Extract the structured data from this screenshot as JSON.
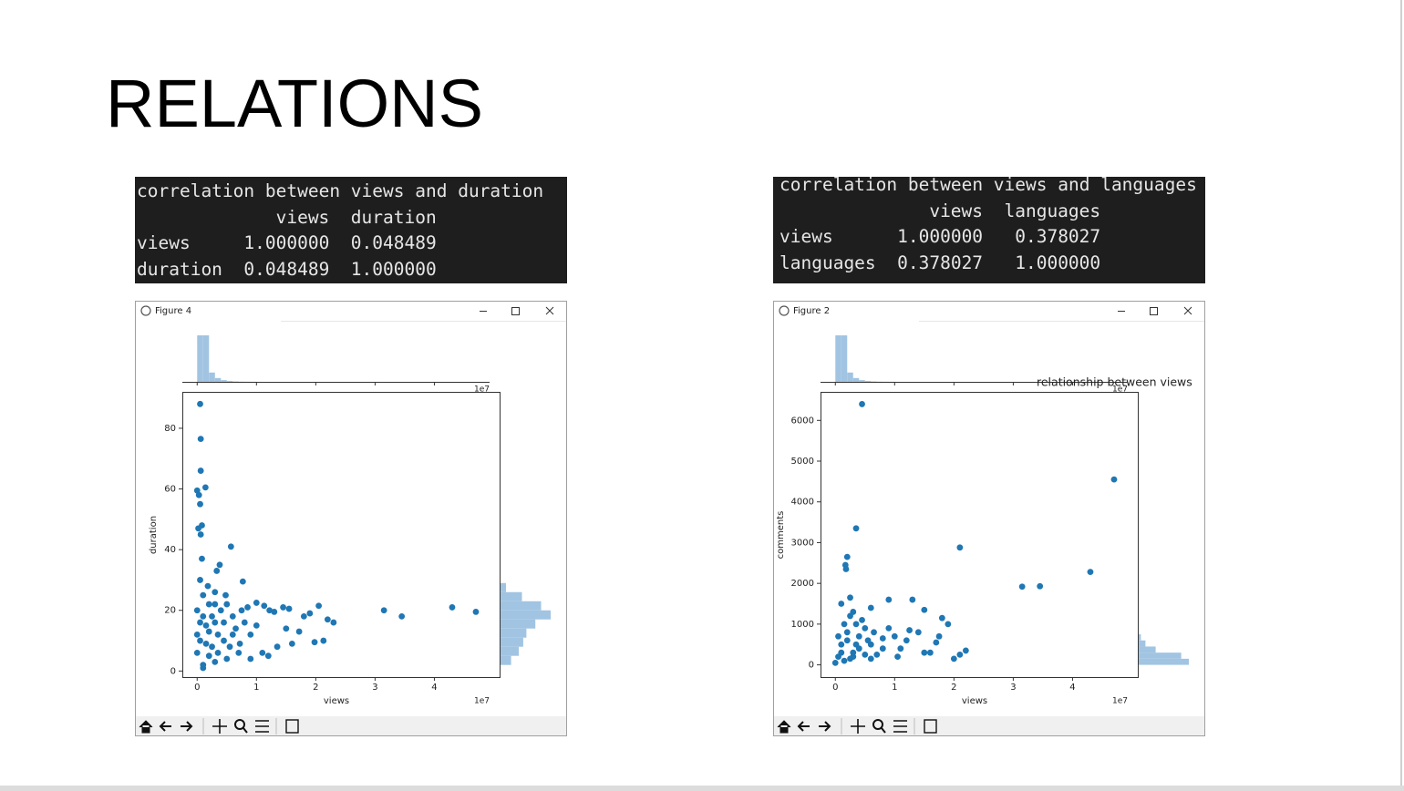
{
  "title": "RELATIONS",
  "consoles": [
    {
      "caption": "correlation between views and duration",
      "columns": [
        "views",
        "duration"
      ],
      "rows": [
        [
          "views",
          "1.000000",
          "0.048489"
        ],
        [
          "duration",
          "0.048489",
          "1.000000"
        ]
      ]
    },
    {
      "caption": "correlation between views and languages",
      "columns": [
        "views",
        "languages"
      ],
      "rows": [
        [
          "views",
          "1.000000",
          "0.378027"
        ],
        [
          "languages",
          "0.378027",
          "1.000000"
        ]
      ]
    }
  ],
  "windows": [
    {
      "title": "Figure 4"
    },
    {
      "title": "Figure 2"
    }
  ],
  "chart_data": [
    {
      "type": "scatter",
      "x_label": "views",
      "y_label": "duration",
      "x_offset_label": "1e7",
      "color": "#1f77b4",
      "hist_color": "#a1c4e2",
      "xlim": [
        -0.25,
        5.1
      ],
      "ylim": [
        -2,
        92
      ],
      "xticks": [
        0,
        1,
        2,
        3,
        4
      ],
      "yticks": [
        0,
        20,
        40,
        60,
        80
      ],
      "x": [
        0.05,
        0.06,
        0.06,
        0.14,
        0,
        0.03,
        0.05,
        0.02,
        0.08,
        0.06,
        0.57,
        0.08,
        0.38,
        0.33,
        0.77,
        0.05,
        0.18,
        0.48,
        0.3,
        1.0,
        1.13,
        1.45,
        1.55,
        1.3,
        1.22,
        2.05,
        2.2,
        3.15,
        3.45,
        4.3,
        4.7,
        2.13,
        1.98,
        1.6,
        1.5,
        1.72,
        0.9,
        0.72,
        0.9,
        1.1,
        1.2,
        0.3,
        0.1,
        0.2,
        0.05,
        0.15,
        0.25,
        0.35,
        0.45,
        0.55,
        0.65,
        0.4,
        0.6,
        0.8,
        0.1,
        0.25,
        0.5,
        0.75,
        1.8,
        1.9,
        0,
        0,
        0,
        0.1,
        0.2,
        0.3,
        0.15,
        0.35,
        0.45,
        0.6,
        0.2,
        0.1,
        0.05,
        0.3,
        0.5,
        0.7,
        1.0,
        0.85,
        1.35,
        2.3
      ],
      "values": [
        88,
        76.5,
        66,
        60.5,
        59.5,
        58,
        55,
        47,
        48,
        45,
        41,
        37,
        35,
        33,
        29.5,
        30,
        28,
        25,
        22,
        22.5,
        21.5,
        21,
        20.5,
        19.5,
        20,
        21.5,
        17,
        20,
        18,
        21,
        19.5,
        10,
        9.5,
        9,
        14,
        13,
        12,
        9,
        4,
        6,
        5,
        3,
        1,
        5,
        10,
        15,
        18,
        12,
        16,
        8,
        14,
        20,
        18,
        16,
        25,
        8,
        4,
        20,
        18,
        19,
        6,
        12,
        20,
        2,
        22,
        16,
        9,
        6,
        10,
        12,
        13,
        18,
        16,
        26,
        22,
        6,
        15,
        21,
        8,
        16
      ],
      "top_histogram": {
        "bins": [
          0,
          0.1,
          0.2,
          0.3,
          0.4,
          0.5,
          0.6,
          0.7,
          0.8,
          0.9,
          1.0
        ],
        "counts": [
          1100,
          1100,
          220,
          90,
          40,
          20,
          10,
          5,
          3,
          2
        ]
      },
      "right_histogram": {
        "bins": [
          2,
          5,
          8,
          11,
          14,
          17,
          20,
          23,
          26,
          29
        ],
        "counts": [
          180,
          300,
          370,
          420,
          560,
          800,
          650,
          350,
          100
        ]
      }
    },
    {
      "type": "scatter",
      "title": "relationship between views",
      "x_label": "views",
      "y_label": "comments",
      "x_offset_label": "1e7",
      "color": "#1f77b4",
      "hist_color": "#a1c4e2",
      "xlim": [
        -0.25,
        5.1
      ],
      "ylim": [
        -300,
        6700
      ],
      "xticks": [
        0,
        1,
        2,
        3,
        4
      ],
      "yticks": [
        0,
        1000,
        2000,
        3000,
        4000,
        5000,
        6000
      ],
      "x": [
        0.45,
        4.7,
        0.35,
        2.1,
        3.15,
        3.45,
        4.3,
        0.2,
        0.17,
        0.18,
        0.25,
        0.9,
        1.3,
        1.5,
        1.8,
        1.9,
        0.6,
        0.1,
        0.3,
        2.2,
        2.1,
        2.0,
        1.5,
        1.6,
        1.0,
        1.2,
        0.5,
        0.4,
        0.2,
        0.1,
        0.05,
        0,
        0.3,
        0.6,
        0.8,
        1.1,
        0.15,
        0.25,
        0.7,
        0.45,
        0.35,
        1.4,
        1.7,
        1.75,
        0.55,
        0.9,
        1.25,
        0.1,
        0.2,
        0.3,
        0.4,
        0.5,
        0.6,
        0.05,
        0.15,
        0.35,
        0.65,
        0.8,
        1.05,
        0.25
      ],
      "values": [
        6400,
        4550,
        3350,
        2880,
        1920,
        1930,
        2280,
        2650,
        2450,
        2350,
        1650,
        1600,
        1600,
        1350,
        1150,
        1000,
        1400,
        1500,
        1300,
        350,
        250,
        150,
        300,
        300,
        700,
        600,
        900,
        700,
        800,
        500,
        200,
        50,
        300,
        500,
        400,
        400,
        100,
        150,
        250,
        1100,
        1000,
        800,
        550,
        700,
        600,
        900,
        850,
        300,
        600,
        200,
        400,
        250,
        150,
        700,
        1000,
        500,
        800,
        650,
        200,
        1200
      ],
      "top_histogram": {
        "bins": [
          0,
          0.1,
          0.2,
          0.3,
          0.4,
          0.5,
          0.6,
          0.7,
          0.8,
          0.9,
          1.0
        ],
        "counts": [
          1100,
          1100,
          220,
          90,
          40,
          20,
          10,
          5,
          3,
          2
        ]
      },
      "right_histogram": {
        "bins": [
          0,
          150,
          300,
          450,
          600,
          750
        ],
        "counts": [
          1000,
          850,
          350,
          150,
          60
        ]
      }
    }
  ]
}
